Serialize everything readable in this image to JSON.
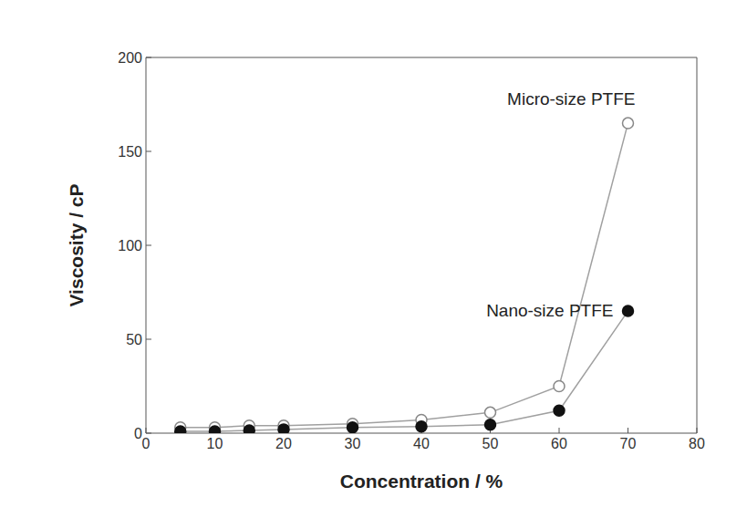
{
  "chart_data": {
    "type": "line",
    "x_label": "Concentration / %",
    "y_label": "Viscosity / cP",
    "x": [
      5,
      10,
      15,
      20,
      30,
      40,
      50,
      60,
      70
    ],
    "series": [
      {
        "name": "Micro-size PTFE",
        "color": "#a0a0a0",
        "marker": "open",
        "values": [
          3,
          3,
          4,
          4,
          5,
          7,
          11,
          25,
          165
        ]
      },
      {
        "name": "Nano-size PTFE",
        "color": "#a0a0a0",
        "marker": "filled",
        "values": [
          1,
          1,
          1.5,
          2,
          3,
          3.5,
          4.5,
          12,
          65
        ]
      }
    ],
    "xlim": [
      0,
      80
    ],
    "xticks": [
      0,
      10,
      20,
      30,
      40,
      50,
      60,
      70,
      80
    ],
    "ylim": [
      0,
      200
    ],
    "yticks": [
      0,
      50,
      100,
      150,
      200
    ],
    "grid": false
  }
}
